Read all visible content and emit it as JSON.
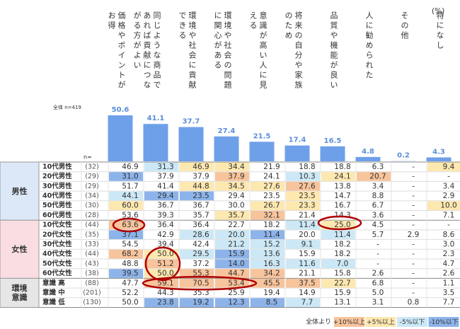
{
  "unit": "(%)",
  "total_label": "全体 n=419",
  "n_label": "n=",
  "chart_data": {
    "type": "bar",
    "color": "#6ea0ea",
    "categories": [
      "価格やポイントがお得",
      "同じような商品であれば貢献につながる方がよい",
      "環境や社会に貢献できる",
      "環境や社会の問題に関心がある",
      "意識が高い人に見える",
      "将来の自分や家族のため",
      "品質や機能が良い",
      "人に勧められた",
      "その他",
      "特になし"
    ],
    "values": [
      50.6,
      41.1,
      37.7,
      27.4,
      21.5,
      17.4,
      16.5,
      4.8,
      0.2,
      4.3
    ]
  },
  "table": {
    "groups": [
      {
        "label": "男性",
        "color": "#dce8f8",
        "rows": [
          {
            "label": "10代男性",
            "n": "(32)",
            "values": [
              "46.9",
              "31.3",
              "46.9",
              "34.4",
              "21.9",
              "18.8",
              "18.8",
              "6.3",
              "-",
              "9.4"
            ]
          },
          {
            "label": "20代男性",
            "n": "(29)",
            "values": [
              "31.0",
              "37.9",
              "37.9",
              "37.9",
              "24.1",
              "10.3",
              "24.1",
              "20.7",
              "-",
              "-"
            ]
          },
          {
            "label": "30代男性",
            "n": "(29)",
            "values": [
              "51.7",
              "41.4",
              "44.8",
              "34.5",
              "27.6",
              "27.6",
              "13.8",
              "3.4",
              "-",
              "3.4"
            ]
          },
          {
            "label": "40代男性",
            "n": "(34)",
            "values": [
              "44.1",
              "29.4",
              "23.5",
              "29.4",
              "23.5",
              "23.5",
              "14.7",
              "8.8",
              "-",
              "2.9"
            ]
          },
          {
            "label": "50代男性",
            "n": "(30)",
            "values": [
              "60.0",
              "36.7",
              "36.7",
              "30.0",
              "26.7",
              "23.3",
              "16.7",
              "6.7",
              "-",
              "10.0"
            ]
          },
          {
            "label": "60代男性",
            "n": "(28)",
            "values": [
              "53.6",
              "39.3",
              "35.7",
              "35.7",
              "32.1",
              "21.4",
              "14.3",
              "3.6",
              "-",
              "7.1"
            ]
          }
        ]
      },
      {
        "label": "女性",
        "color": "#fadde2",
        "rows": [
          {
            "label": "10代女性",
            "n": "(44)",
            "values": [
              "63.6",
              "36.4",
              "36.4",
              "22.7",
              "18.2",
              "11.4",
              "25.0",
              "4.5",
              "-",
              "-"
            ]
          },
          {
            "label": "20代女性",
            "n": "(35)",
            "values": [
              "37.1",
              "42.9",
              "28.6",
              "20.0",
              "11.4",
              "20.0",
              "11.4",
              "5.7",
              "2.9",
              "8.6"
            ]
          },
          {
            "label": "30代女性",
            "n": "(33)",
            "values": [
              "54.5",
              "39.4",
              "42.4",
              "21.2",
              "15.2",
              "9.1",
              "18.2",
              "-",
              "-",
              "3.0"
            ]
          },
          {
            "label": "40代女性",
            "n": "(44)",
            "values": [
              "68.2",
              "50.0",
              "29.5",
              "15.9",
              "13.6",
              "15.9",
              "18.2",
              "-",
              "-",
              "2.3"
            ]
          },
          {
            "label": "50代女性",
            "n": "(43)",
            "values": [
              "48.8",
              "51.2",
              "37.2",
              "14.0",
              "16.3",
              "11.6",
              "7.0",
              "-",
              "-",
              "4.7"
            ]
          },
          {
            "label": "60代女性",
            "n": "(38)",
            "values": [
              "39.5",
              "50.0",
              "55.3",
              "44.7",
              "34.2",
              "21.1",
              "15.8",
              "2.6",
              "-",
              "2.6"
            ]
          }
        ]
      },
      {
        "label": "環境意識",
        "color": "#e6e6e6",
        "rows": [
          {
            "label": "意識 高",
            "n": "(88)",
            "values": [
              "47.7",
              "59.1",
              "70.5",
              "53.4",
              "45.5",
              "37.5",
              "22.7",
              "6.8",
              "-",
              "1.1"
            ]
          },
          {
            "label": "意識 中",
            "n": "(201)",
            "values": [
              "52.2",
              "44.3",
              "35.3",
              "25.9",
              "19.4",
              "14.9",
              "15.9",
              "5.0",
              "-",
              "3.5"
            ]
          },
          {
            "label": "意識 低",
            "n": "(130)",
            "values": [
              "50.0",
              "23.8",
              "19.2",
              "12.3",
              "8.5",
              "7.7",
              "13.1",
              "3.1",
              "0.8",
              "7.7"
            ]
          }
        ]
      }
    ]
  },
  "legend": {
    "title": "全体より",
    "items": [
      {
        "value": 10,
        "label": "+10%以上",
        "color": "#f8c49c"
      },
      {
        "value": 5,
        "label": "+5%以上",
        "color": "#fde8b0"
      },
      {
        "value": -5,
        "label": "-5%以下",
        "color": "#cce8f6"
      },
      {
        "value": -10,
        "label": "-10%以下",
        "color": "#8db4ea"
      }
    ]
  }
}
